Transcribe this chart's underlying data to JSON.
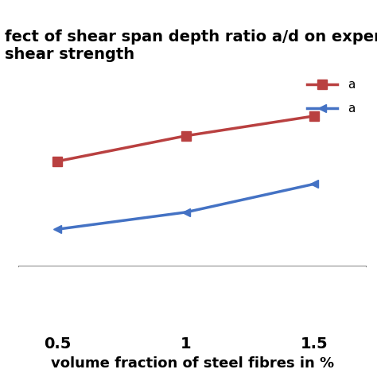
{
  "title_line1": "fect of shear span depth ratio a/d on experimen",
  "title_line2": "shear strength",
  "xlabel": "volume fraction of steel fibres in %",
  "x_values": [
    0.5,
    1.0,
    1.5
  ],
  "red_y": [
    5.2,
    6.1,
    6.8
  ],
  "blue_y": [
    2.8,
    3.4,
    4.4
  ],
  "red_color": "#b94040",
  "blue_color": "#4472c4",
  "ylim": [
    1.5,
    8.5
  ],
  "xlim": [
    0.35,
    1.7
  ],
  "legend_label_red": "a",
  "legend_label_blue": "a",
  "bg_color": "#ffffff",
  "title_fontsize": 14,
  "label_fontsize": 13,
  "tick_fontsize": 14,
  "xtick_labels": [
    "0.5",
    "1",
    "1.5"
  ],
  "xticks": [
    0.5,
    1.0,
    1.5
  ]
}
